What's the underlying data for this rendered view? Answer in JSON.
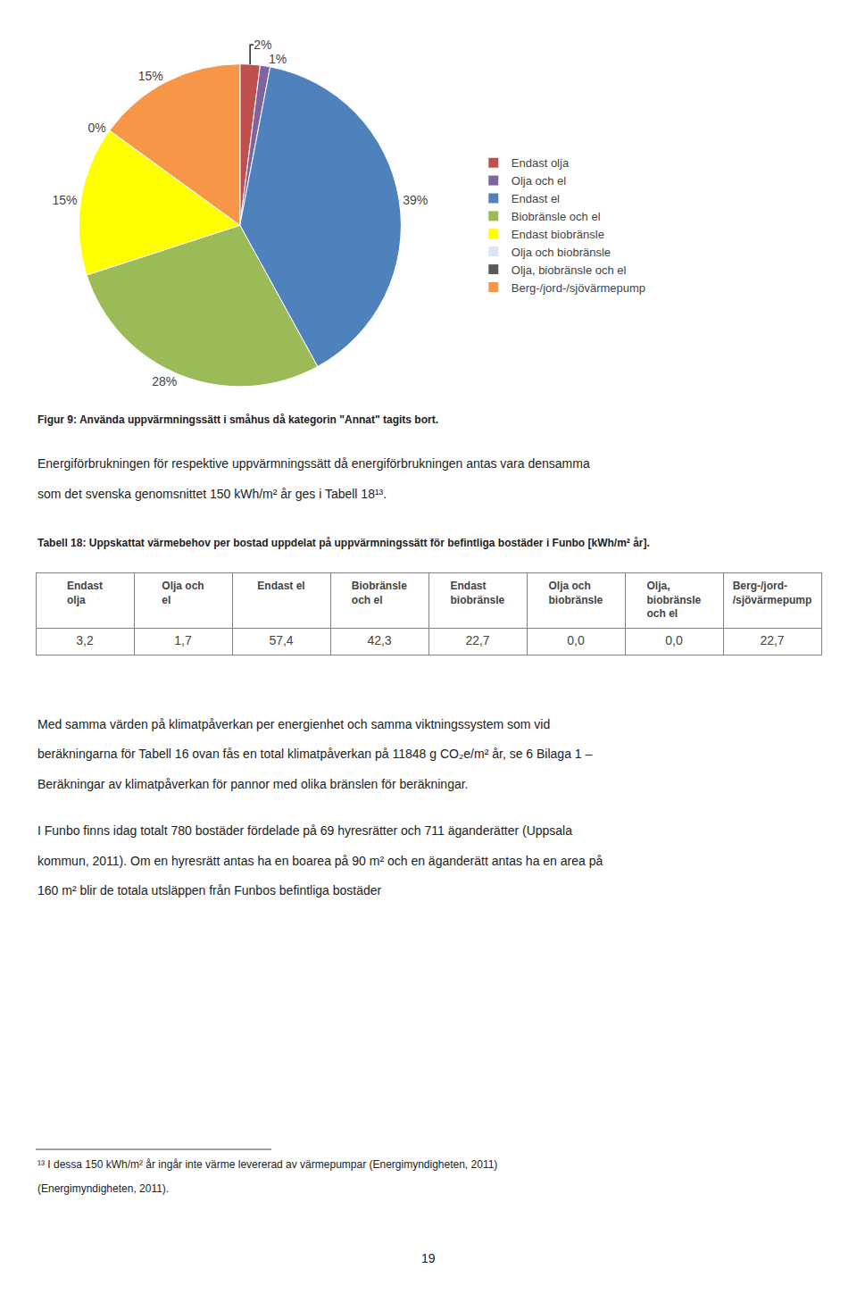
{
  "chart_data": [
    {
      "type": "pie",
      "title": "Figur 9: Använda uppvärmningssätt i småhus då kategorin \"Annat\" tagits bort.",
      "categories": [
        "Endast olja",
        "Olja och el",
        "Endast el",
        "Biobränsle och el",
        "Endast biobränsle",
        "Olja och biobränsle",
        "Olja, biobränsle och el",
        "Berg-/jord-/sjövärmepump"
      ],
      "values": [
        2,
        1,
        39,
        28,
        15,
        0,
        0,
        15
      ],
      "value_labels": [
        "2%",
        "1%",
        "39%",
        "28%",
        "15%",
        "0%",
        null,
        "15%"
      ],
      "colors": [
        "#c0504d",
        "#8064a2",
        "#4f81bd",
        "#9bbb59",
        "#ffff00",
        "#dce6f1",
        "#595959",
        "#f79646"
      ],
      "legend": "right",
      "annotations": [
        [
          "Energiförbrukningen för respektive uppvärmningssätt då energiförbrukningen antas vara densamma",
          "som det svenska genomsnittet 150 kWh/m² år ges i Tabell 18¹³."
        ]
      ]
    },
    {
      "type": "table",
      "title": "Tabell 18: Uppskattat värmebehov per bostad uppdelat på uppvärmningssätt för befintliga bostäder i Funbo [kWh/m² år].",
      "categories": [
        "Endast\nolja",
        "Olja och\nel",
        "Endast el",
        "Biobränsle\noch el",
        "Endast\nbiobränsle",
        "Olja och\nbiobränsle",
        "Olja,\nbiobränsle\noch el",
        "Berg-/jord-\n/sjövärmepump"
      ],
      "values": [
        3.2,
        1.7,
        57.4,
        42.3,
        22.7,
        0.0,
        0.0,
        22.7
      ],
      "value_labels": [
        "3,2",
        "1,7",
        "57,4",
        "42,3",
        "22,7",
        "0,0",
        "0,0",
        "22,7"
      ],
      "annotations": [
        [
          "Med samma värden på klimatpåverkan per energienhet och samma viktningssystem som vid",
          "beräkningarna för Tabell 16 ovan fås en total klimatpåverkan på 11848 g CO₂e/m² år, se 6 Bilaga 1 –",
          "Beräkningar av klimatpåverkan för pannor med olika bränslen för beräkningar."
        ],
        [
          "I Funbo finns idag totalt 780 bostäder fördelade på 69 hyresrätter och 711 äganderätter (Uppsala",
          "kommun, 2011). Om en hyresrätt antas ha en boarea på 90 m² och en äganderätt antas ha en area på",
          "160 m² blir de totala utsläppen från Funbos befintliga bostäder"
        ],
        [
          "¹³ I dessa 150 kWh/m² år ingår inte värme levererad av värmepumpar (Energimyndigheten, 2011)",
          "(Energimyndigheten, 2011)."
        ],
        [
          "19"
        ]
      ]
    }
  ]
}
